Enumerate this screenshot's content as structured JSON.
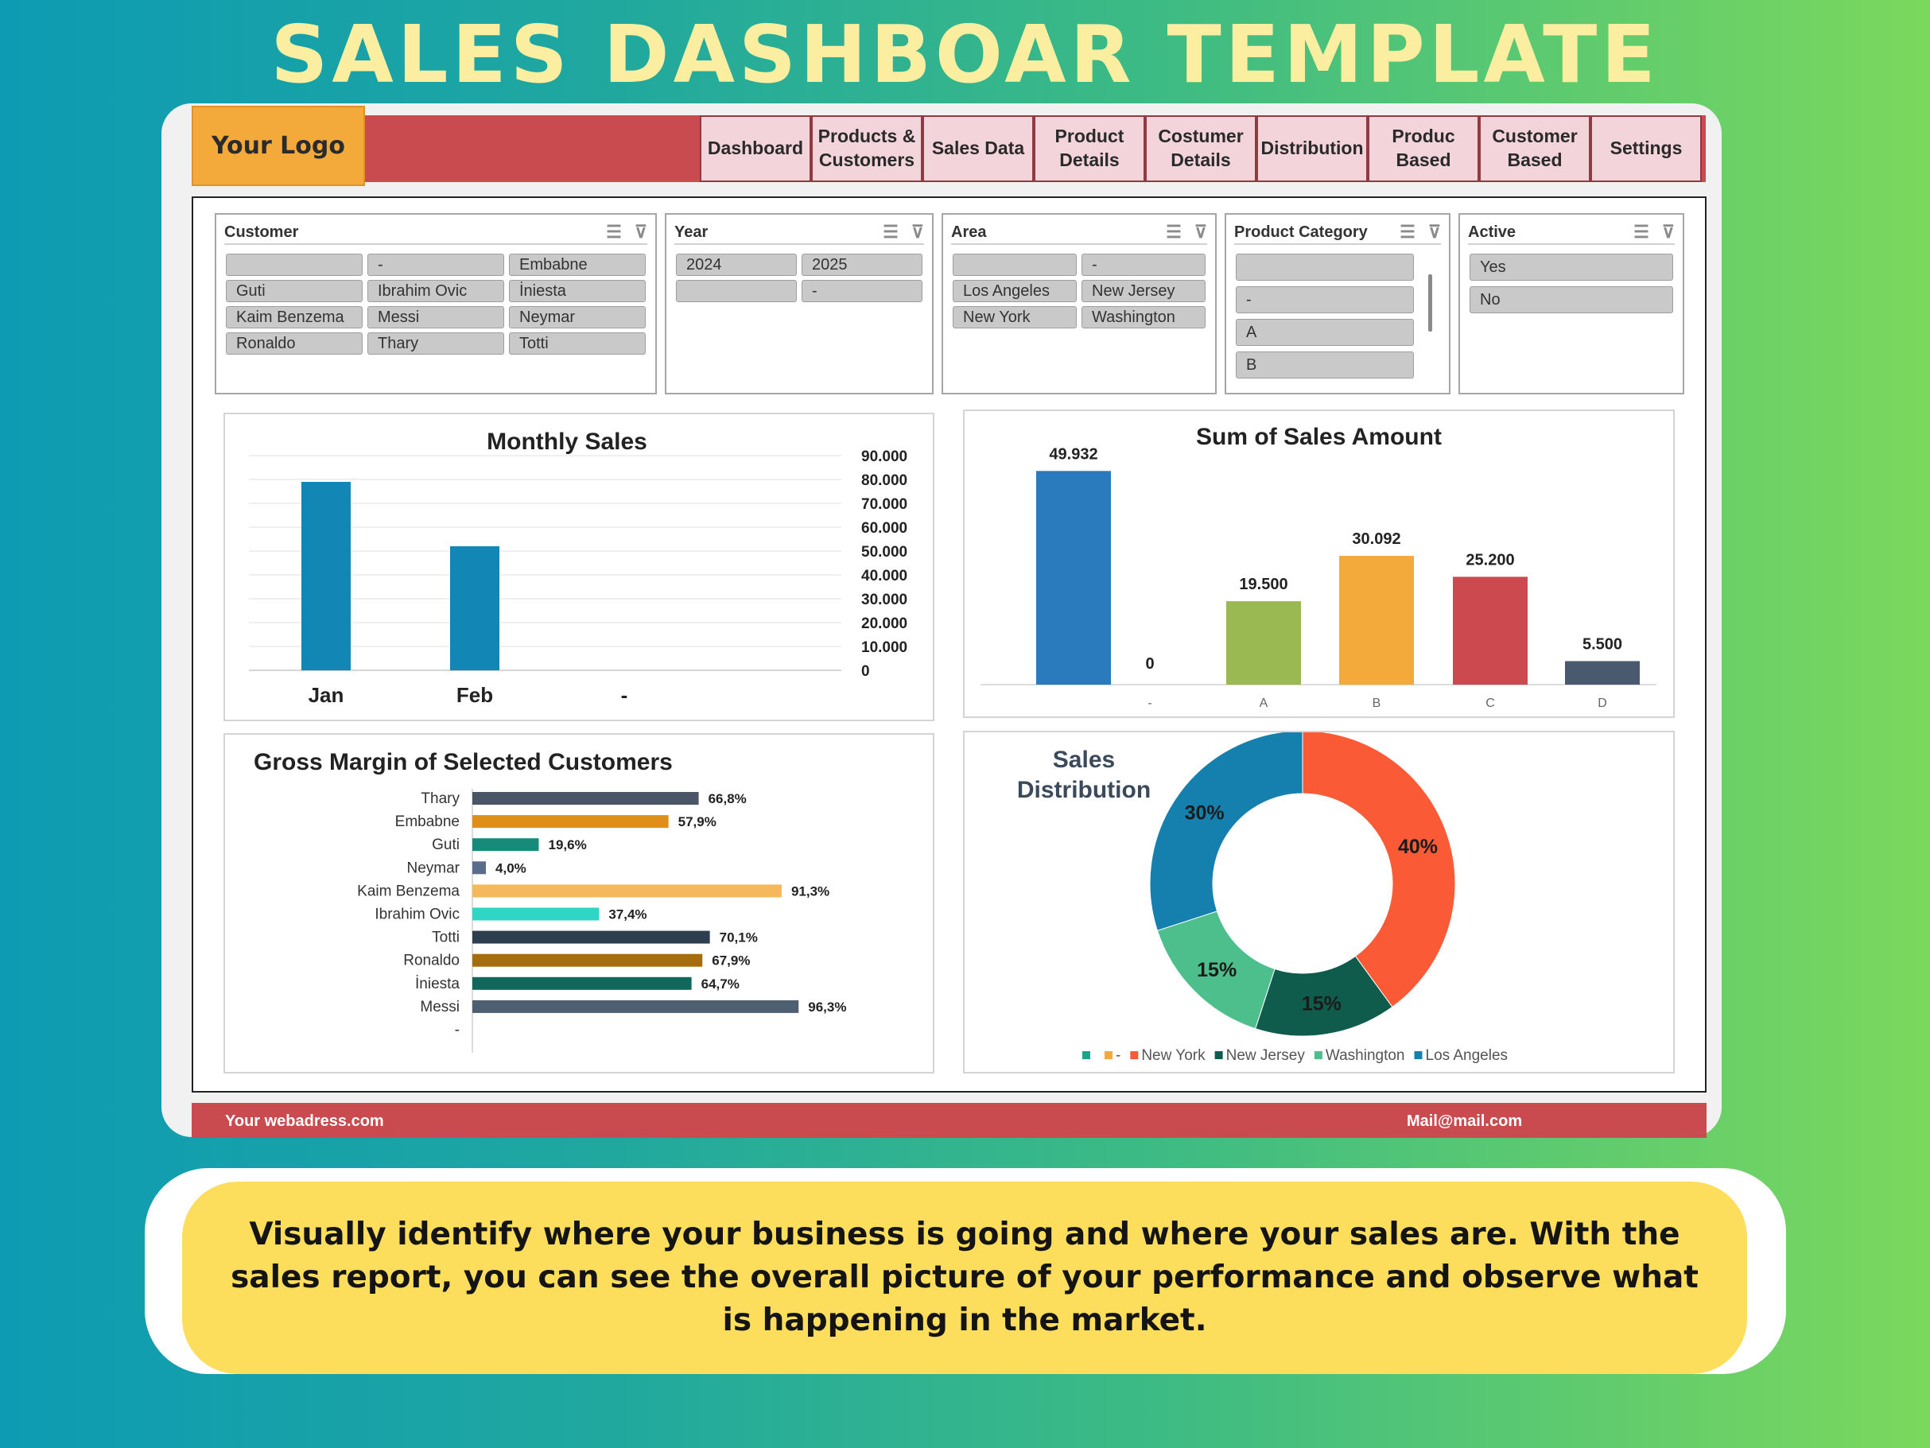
{
  "headline": "SALES DASHBOAR TEMPLATE",
  "logo": "Your Logo",
  "nav": [
    {
      "label": "Dashboard"
    },
    {
      "label": "Products &\nCustomers"
    },
    {
      "label": "Sales Data"
    },
    {
      "label": "Product\nDetails"
    },
    {
      "label": "Costumer\nDetails"
    },
    {
      "label": "Distribution"
    },
    {
      "label": "Produc\nBased"
    },
    {
      "label": "Customer\nBased"
    },
    {
      "label": "Settings"
    }
  ],
  "slicers": {
    "customer": {
      "title": "Customer",
      "items": [
        "",
        "-",
        "Embabne",
        "Guti",
        "Ibrahim Ovic",
        "İniesta",
        "Kaim Benzema",
        "Messi",
        "Neymar",
        "Ronaldo",
        "Thary",
        "Totti"
      ]
    },
    "year": {
      "title": "Year",
      "items": [
        "2024",
        "2025",
        "",
        "-"
      ]
    },
    "area": {
      "title": "Area",
      "items": [
        "",
        "-",
        "Los Angeles",
        "New Jersey",
        "New York",
        "Washington"
      ]
    },
    "product_category": {
      "title": "Product Category",
      "items": [
        "",
        "-",
        "A",
        "B"
      ]
    },
    "active": {
      "title": "Active",
      "items": [
        "Yes",
        "No"
      ]
    }
  },
  "footer": {
    "website": "Your webadress.com",
    "mail": "Mail@mail.com"
  },
  "description": "Visually identify where your business is going and where your sales are. With the sales report, you can see the overall picture of your performance and observe what is happening in the market.",
  "chart_data": [
    {
      "id": "monthly_sales",
      "type": "bar",
      "title": "Monthly Sales",
      "categories": [
        "Jan",
        "Feb",
        "-"
      ],
      "values": [
        79000,
        52000,
        0
      ],
      "ylim": [
        0,
        90000
      ],
      "yticks": [
        "90.000",
        "80.000",
        "70.000",
        "60.000",
        "50.000",
        "40.000",
        "30.000",
        "20.000",
        "10.000",
        "0"
      ],
      "color": "#1286b5",
      "grid": true
    },
    {
      "id": "sum_sales_amount",
      "type": "bar",
      "title": "Sum of Sales Amount",
      "categories": [
        "",
        "-",
        "A",
        "B",
        "C",
        "D"
      ],
      "values": [
        49932,
        0,
        19500,
        30092,
        25200,
        5500
      ],
      "labels": [
        "49.932",
        "0",
        "19.500",
        "30.092",
        "25.200",
        "5.500"
      ],
      "colors": [
        "#2a7bbd",
        "#999999",
        "#9bb953",
        "#f3aa3a",
        "#cc4a4f",
        "#4a5a6e"
      ],
      "ylim": [
        0,
        55000
      ]
    },
    {
      "id": "gross_margin",
      "type": "bar",
      "orientation": "horizontal",
      "title": "Gross Margin of Selected Customers",
      "categories": [
        "Thary",
        "Embabne",
        "Guti",
        "Neymar",
        "Kaim Benzema",
        "Ibrahim Ovic",
        "Totti",
        "Ronaldo",
        "İniesta",
        "Messi",
        "-"
      ],
      "values": [
        66.8,
        57.9,
        19.6,
        4.0,
        91.3,
        37.4,
        70.1,
        67.9,
        64.7,
        96.3,
        0
      ],
      "labels": [
        "66,8%",
        "57,9%",
        "19,6%",
        "4,0%",
        "91,3%",
        "37,4%",
        "70,1%",
        "67,9%",
        "64,7%",
        "96,3%",
        ""
      ],
      "colors": [
        "#4a5568",
        "#e08e17",
        "#178a7a",
        "#5a6b8c",
        "#f5b95c",
        "#2fd6c4",
        "#2d3e50",
        "#a56d0e",
        "#12665c",
        "#4e5f72",
        "#999999"
      ]
    },
    {
      "id": "sales_distribution",
      "type": "pie",
      "title": "Sales\nDistribution",
      "series": [
        {
          "name": "",
          "value": 0,
          "color": "#18a58c"
        },
        {
          "name": "-",
          "value": 0,
          "color": "#f3aa3a"
        },
        {
          "name": "New York",
          "value": 40,
          "color": "#fa5a36"
        },
        {
          "name": "New Jersey",
          "value": 15,
          "color": "#0f5c4c"
        },
        {
          "name": "Washington",
          "value": 15,
          "color": "#4cbf8c"
        },
        {
          "name": "Los Angeles",
          "value": 30,
          "color": "#1580ad"
        }
      ],
      "labels": [
        "40%",
        "15%",
        "15%",
        "30%"
      ]
    }
  ]
}
